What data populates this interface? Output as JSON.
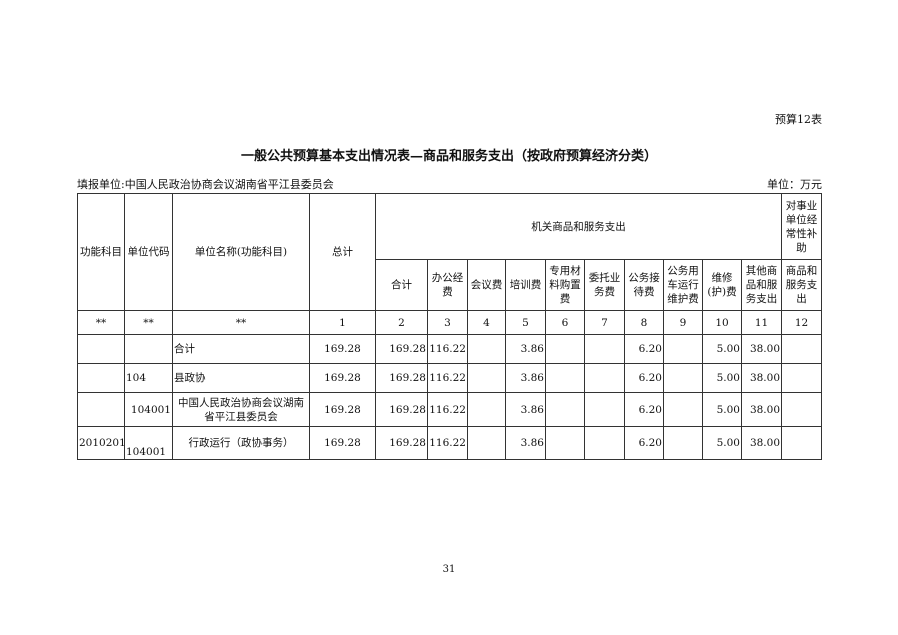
{
  "doc": {
    "tag": "预算12表",
    "title": "一般公共预算基本支出情况表—商品和服务支出（按政府预算经济分类）",
    "fill_unit": "填报单位:中国人民政治协商会议湖南省平江县委员会",
    "unit": "单位：万元",
    "page_number": "31"
  },
  "table": {
    "headers": {
      "func": "功能科目",
      "code": "单位代码",
      "name": "单位名称(功能科目)",
      "total": "总计",
      "group": "机关商品和服务支出",
      "subsidy": "对事业单位经常性补助",
      "sub": [
        "合计",
        "办公经费",
        "会议费",
        "培训费",
        "专用材料购置费",
        "委托业务费",
        "公务接待费",
        "公务用车运行维护费",
        "维修(护)费",
        "其他商品和服务支出",
        "商品和服务支出"
      ]
    },
    "index_row": [
      "**",
      "**",
      "**",
      "1",
      "2",
      "3",
      "4",
      "5",
      "6",
      "7",
      "8",
      "9",
      "10",
      "11",
      "12"
    ],
    "rows": [
      {
        "func": "",
        "code": "",
        "name": "合计",
        "v": [
          "169.28",
          "169.28",
          "116.22",
          "",
          "3.86",
          "",
          "",
          "6.20",
          "",
          "5.00",
          "38.00",
          ""
        ]
      },
      {
        "func": "",
        "code": "104",
        "name": "县政协",
        "v": [
          "169.28",
          "169.28",
          "116.22",
          "",
          "3.86",
          "",
          "",
          "6.20",
          "",
          "5.00",
          "38.00",
          ""
        ]
      },
      {
        "func": "",
        "code": "104001",
        "name": "中国人民政治协商会议湖南省平江县委员会",
        "v": [
          "169.28",
          "169.28",
          "116.22",
          "",
          "3.86",
          "",
          "",
          "6.20",
          "",
          "5.00",
          "38.00",
          ""
        ]
      },
      {
        "func": "2010201",
        "code": "104001",
        "name": "行政运行（政协事务）",
        "v": [
          "169.28",
          "169.28",
          "116.22",
          "",
          "3.86",
          "",
          "",
          "6.20",
          "",
          "5.00",
          "38.00",
          ""
        ]
      }
    ]
  }
}
